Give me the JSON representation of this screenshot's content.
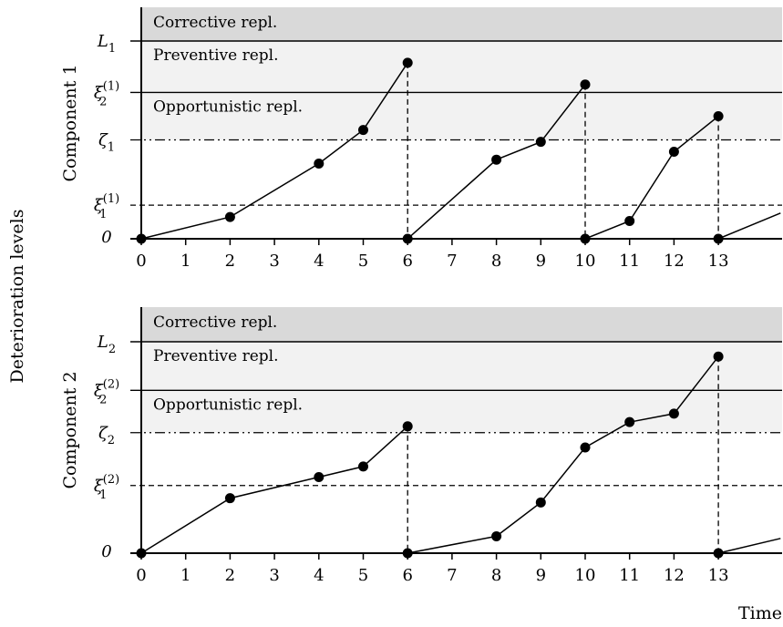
{
  "chart_data": {
    "type": "line",
    "ylabel": "Deterioration levels",
    "xlabel": "Time",
    "x_ticks": [
      0,
      1,
      2,
      3,
      4,
      5,
      6,
      7,
      8,
      9,
      10,
      11,
      12,
      13
    ],
    "zones": [
      {
        "key": "corrective",
        "label": "Corrective repl.",
        "color": "#d9d9d9"
      },
      {
        "key": "preventive",
        "label": "Preventive repl.",
        "color": "#f2f2f2"
      },
      {
        "key": "opportunistic",
        "label": "Opportunistic repl.",
        "color": "#f2f2f2"
      }
    ],
    "panels": [
      {
        "name": "Component 1",
        "levels": {
          "zero": "0",
          "L": {
            "base": "L",
            "sub": "1"
          },
          "xi2": {
            "base": "ξ",
            "sub": "2",
            "sup": "(1)"
          },
          "zeta": {
            "base": "ζ",
            "sub": "1"
          },
          "xi1": {
            "base": "ξ",
            "sub": "1",
            "sup": "(1)"
          }
        },
        "level_values": {
          "L": 1.0,
          "xi2": 0.74,
          "zeta": 0.5,
          "xi1": 0.17
        },
        "segments": [
          {
            "x": [
              0,
              2,
              4,
              5,
              6
            ],
            "y": [
              0.0,
              0.11,
              0.38,
              0.55,
              0.89
            ]
          },
          {
            "x": [
              6,
              8,
              9,
              10
            ],
            "y": [
              0.0,
              0.4,
              0.49,
              0.78
            ]
          },
          {
            "x": [
              10,
              11,
              12,
              13
            ],
            "y": [
              0.0,
              0.09,
              0.44,
              0.62
            ]
          },
          {
            "x": [
              13,
              14.4
            ],
            "y": [
              0.0,
              0.13
            ]
          }
        ],
        "replacements": [
          6,
          10,
          13
        ]
      },
      {
        "name": "Component 2",
        "levels": {
          "zero": "0",
          "L": {
            "base": "L",
            "sub": "2"
          },
          "xi2": {
            "base": "ξ",
            "sub": "2",
            "sup": "(2)"
          },
          "zeta": {
            "base": "ζ",
            "sub": "2"
          },
          "xi1": {
            "base": "ξ",
            "sub": "1",
            "sup": "(2)"
          }
        },
        "level_values": {
          "L": 1.0,
          "xi2": 0.77,
          "zeta": 0.57,
          "xi1": 0.32
        },
        "segments": [
          {
            "x": [
              0,
              2,
              4,
              5,
              6
            ],
            "y": [
              0.0,
              0.26,
              0.36,
              0.41,
              0.6
            ]
          },
          {
            "x": [
              6,
              8,
              9,
              10,
              11,
              12,
              13
            ],
            "y": [
              0.0,
              0.08,
              0.24,
              0.5,
              0.62,
              0.66,
              0.93
            ]
          },
          {
            "x": [
              13,
              14.4
            ],
            "y": [
              0.0,
              0.07
            ]
          }
        ],
        "replacements": [
          6,
          13
        ]
      }
    ]
  },
  "colors": {
    "line": "#000000",
    "corrective_zone": "#d9d9d9",
    "preventive_zone": "#f2f2f2"
  }
}
